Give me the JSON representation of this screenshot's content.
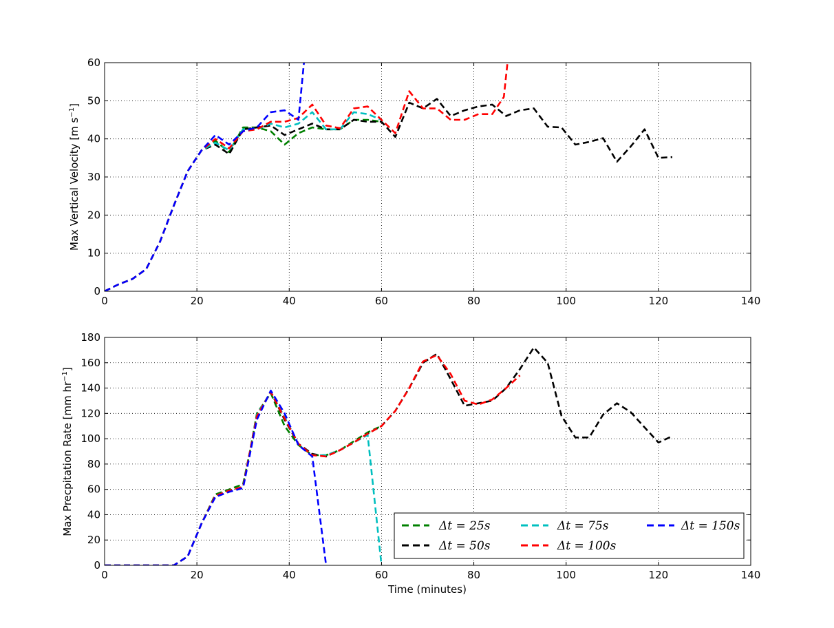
{
  "chart_data": [
    {
      "type": "line",
      "title": "",
      "xlabel": "",
      "ylabel": "Max Vertical Velocity [m s$^{-1}$]",
      "ylabel_main": "Max Vertical Velocity [m s",
      "ylabel_sup": "−1",
      "ylabel_end": "]",
      "xlim": [
        0,
        140
      ],
      "ylim": [
        0,
        60
      ],
      "xticks": [
        0,
        20,
        40,
        60,
        80,
        100,
        120,
        140
      ],
      "yticks": [
        0,
        10,
        20,
        30,
        40,
        50,
        60
      ],
      "grid": true,
      "series": [
        {
          "name": "Δt = 25s",
          "color": "#008000",
          "x": [
            0,
            3,
            6,
            9,
            12,
            15,
            18,
            21,
            24,
            27,
            30,
            33,
            36,
            39,
            42,
            45,
            48,
            51,
            54,
            57,
            60
          ],
          "y": [
            0,
            1.8,
            3.2,
            5.8,
            13,
            22.5,
            31.5,
            37,
            39.5,
            36.5,
            43,
            43,
            42,
            38.5,
            41.5,
            43,
            42.5,
            42.5,
            45,
            45,
            44.5
          ]
        },
        {
          "name": "Δt = 50s",
          "color": "#000000",
          "x": [
            0,
            3,
            6,
            9,
            12,
            15,
            18,
            21,
            24,
            27,
            30,
            33,
            36,
            39,
            42,
            45,
            48,
            51,
            54,
            57,
            60,
            63,
            66,
            69,
            72,
            75,
            78,
            81,
            84,
            87,
            90,
            93,
            96,
            99,
            102,
            105,
            108,
            111,
            114,
            117,
            120,
            123
          ],
          "y": [
            0,
            1.8,
            3.2,
            5.8,
            13,
            22.5,
            31.5,
            37,
            38.5,
            36,
            42.5,
            43,
            43.5,
            41,
            42.5,
            44,
            42.5,
            42.5,
            45,
            44.5,
            44.5,
            40.5,
            49.5,
            48,
            50.5,
            46,
            47.5,
            48.5,
            49,
            46,
            47.5,
            48,
            43.2,
            43,
            38.5,
            39.2,
            40.2,
            34,
            38,
            42.5,
            35,
            35.2
          ]
        },
        {
          "name": "Δt = 75s",
          "color": "#00BFBF",
          "x": [
            0,
            3,
            6,
            9,
            12,
            15,
            18,
            21,
            24,
            27,
            30,
            33,
            36,
            39,
            42,
            45,
            48,
            51,
            54,
            57,
            60
          ],
          "y": [
            0,
            1.8,
            3.2,
            5.8,
            13,
            22.5,
            31.5,
            37,
            39,
            37,
            42.5,
            42.5,
            44,
            43,
            44,
            47,
            42.5,
            42.5,
            47,
            46.5,
            45
          ]
        },
        {
          "name": "Δt = 100s",
          "color": "#FF0000",
          "x": [
            0,
            3,
            6,
            9,
            12,
            15,
            18,
            21,
            24,
            27,
            30,
            33,
            36,
            39,
            42,
            45,
            48,
            51,
            54,
            57,
            60,
            63,
            66,
            69,
            72,
            75,
            78,
            81,
            84,
            86.5,
            87.3
          ],
          "y": [
            0,
            1.8,
            3.2,
            5.8,
            13,
            22.5,
            31.5,
            37,
            40,
            37.5,
            42,
            42.5,
            44.5,
            44.5,
            45.5,
            49,
            43.5,
            42.8,
            48,
            48.5,
            45,
            41.5,
            52.5,
            48,
            48,
            45,
            45,
            46.5,
            46.5,
            51,
            60
          ]
        },
        {
          "name": "Δt = 150s",
          "color": "#0000FF",
          "x": [
            0,
            3,
            6,
            9,
            12,
            15,
            18,
            21,
            24,
            27,
            30,
            33,
            36,
            39,
            42,
            43.2
          ],
          "y": [
            0,
            1.8,
            3.2,
            5.8,
            13,
            22.5,
            31.5,
            37,
            41,
            38.5,
            42,
            43,
            47,
            47.5,
            45,
            60
          ]
        }
      ]
    },
    {
      "type": "line",
      "title": "",
      "xlabel": "Time (minutes)",
      "ylabel": "Max Precpitation Rate [mm hr$^{-1}$]",
      "ylabel_main": "Max Precpitation Rate [mm hr",
      "ylabel_sup": "−1",
      "ylabel_end": "]",
      "xlim": [
        0,
        140
      ],
      "ylim": [
        0,
        180
      ],
      "xticks": [
        0,
        20,
        40,
        60,
        80,
        100,
        120,
        140
      ],
      "yticks": [
        0,
        20,
        40,
        60,
        80,
        100,
        120,
        140,
        160,
        180
      ],
      "grid": true,
      "legend_position": "lower-right",
      "legend_columns": 3,
      "series": [
        {
          "name": "Δt = 25s",
          "color": "#008000",
          "x": [
            0,
            3,
            6,
            9,
            12,
            15,
            18,
            21,
            24,
            27,
            30,
            31.5,
            33,
            36,
            39,
            42,
            45,
            48,
            51,
            54,
            57,
            60
          ],
          "y": [
            0,
            0,
            0,
            0,
            0,
            0,
            7,
            33,
            56,
            60,
            64,
            90,
            120,
            136,
            110,
            95,
            87,
            87,
            91,
            98,
            105,
            110
          ]
        },
        {
          "name": "Δt = 50s",
          "color": "#000000",
          "x": [
            0,
            3,
            6,
            9,
            12,
            15,
            18,
            21,
            24,
            27,
            30,
            31.5,
            33,
            36,
            39,
            42,
            45,
            48,
            51,
            54,
            57,
            60,
            63,
            66,
            69,
            72,
            75,
            78,
            81,
            84,
            87,
            90,
            93,
            96,
            99,
            102,
            105,
            108,
            111,
            114,
            117,
            120,
            123
          ],
          "y": [
            0,
            0,
            0,
            0,
            0,
            0,
            7,
            33,
            55,
            59,
            62,
            90,
            118,
            137,
            115,
            96,
            88,
            86,
            91,
            97,
            104,
            110,
            122,
            140,
            160,
            167,
            147,
            126,
            128,
            130,
            140,
            155,
            172,
            160,
            118,
            101,
            101,
            119,
            128,
            121,
            109,
            97,
            102
          ]
        },
        {
          "name": "Δt = 75s",
          "color": "#00BFBF",
          "x": [
            0,
            3,
            6,
            9,
            12,
            15,
            18,
            21,
            24,
            27,
            30,
            31.5,
            33,
            36,
            39,
            42,
            45,
            48,
            51,
            54,
            57,
            60
          ],
          "y": [
            0,
            0,
            0,
            0,
            0,
            0,
            7,
            33,
            55,
            59,
            62,
            90,
            119,
            137,
            117,
            96,
            87,
            87,
            91,
            97,
            103,
            0
          ]
        },
        {
          "name": "Δt = 100s",
          "color": "#FF0000",
          "x": [
            0,
            3,
            6,
            9,
            12,
            15,
            18,
            21,
            24,
            27,
            30,
            31.5,
            33,
            36,
            39,
            42,
            45,
            48,
            51,
            54,
            57,
            60,
            63,
            66,
            69,
            72,
            75,
            78,
            81,
            84,
            87,
            90
          ],
          "y": [
            0,
            0,
            0,
            0,
            0,
            0,
            7,
            33,
            55,
            59,
            62,
            90,
            118,
            137,
            116,
            96,
            87,
            86,
            91,
            97,
            104,
            110,
            122,
            140,
            161,
            166,
            151,
            130,
            127,
            131,
            140,
            150
          ]
        },
        {
          "name": "Δt = 150s",
          "color": "#0000FF",
          "x": [
            0,
            3,
            6,
            9,
            12,
            15,
            18,
            21,
            24,
            27,
            30,
            31.5,
            33,
            36,
            39,
            42,
            45,
            48
          ],
          "y": [
            0,
            0,
            0,
            0,
            0,
            0,
            7,
            33,
            54,
            58,
            61,
            88,
            115,
            138,
            120,
            95,
            86,
            0
          ]
        }
      ]
    }
  ],
  "legend": {
    "items": [
      {
        "label_main": "Δt",
        "label_rest": " = 25s",
        "color": "#008000"
      },
      {
        "label_main": "Δt",
        "label_rest": " = 75s",
        "color": "#00BFBF"
      },
      {
        "label_main": "Δt",
        "label_rest": " = 150s",
        "color": "#0000FF"
      },
      {
        "label_main": "Δt",
        "label_rest": " = 50s",
        "color": "#000000"
      },
      {
        "label_main": "Δt",
        "label_rest": " = 100s",
        "color": "#FF0000"
      }
    ]
  }
}
